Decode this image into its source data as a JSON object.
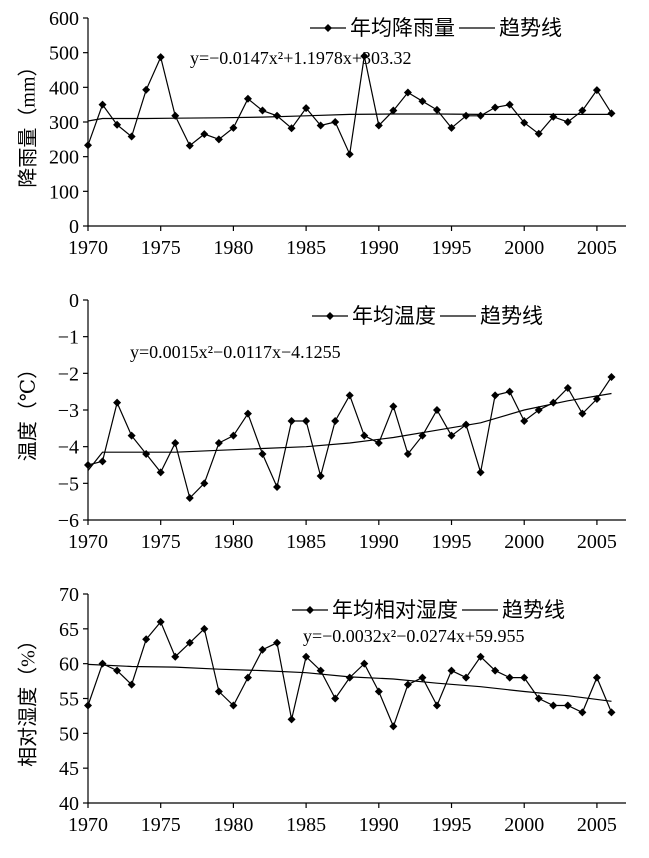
{
  "chart_data": [
    {
      "type": "line",
      "ylabel": "降雨量（mm）",
      "ylim": [
        0,
        600
      ],
      "yticks": [
        0,
        100,
        200,
        300,
        400,
        500,
        600
      ],
      "xlim": [
        1970,
        2007
      ],
      "xticks": [
        1970,
        1975,
        1980,
        1985,
        1990,
        1995,
        2000,
        2005
      ],
      "legend": {
        "series_label": "年均降雨量",
        "trend_label": "趋势线",
        "placement": "top-right"
      },
      "equation": "y=−0.0147x²+1.1978x+303.32",
      "series": [
        {
          "name": "年均降雨量",
          "x": [
            1970,
            1971,
            1972,
            1973,
            1974,
            1975,
            1976,
            1977,
            1978,
            1979,
            1980,
            1981,
            1982,
            1983,
            1984,
            1985,
            1986,
            1987,
            1988,
            1989,
            1990,
            1991,
            1992,
            1993,
            1994,
            1995,
            1996,
            1997,
            1998,
            1999,
            2000,
            2001,
            2002,
            2003,
            2004,
            2005,
            2006
          ],
          "values": [
            233,
            350,
            292,
            258,
            393,
            487,
            318,
            232,
            265,
            250,
            283,
            367,
            333,
            318,
            282,
            340,
            290,
            300,
            207,
            490,
            290,
            333,
            385,
            360,
            335,
            283,
            318,
            318,
            342,
            350,
            298,
            266,
            315,
            300,
            333,
            392,
            325
          ]
        },
        {
          "name": "趋势线",
          "x": [
            1970,
            1971,
            1972,
            1974,
            1976,
            1979,
            1982,
            1985,
            1988,
            1991,
            1994,
            1997,
            2000,
            2003,
            2006
          ],
          "values": [
            303,
            310,
            310,
            310,
            311,
            312,
            314,
            318,
            322,
            323,
            323,
            322,
            322,
            322,
            322
          ]
        }
      ]
    },
    {
      "type": "line",
      "ylabel": "温度（℃）",
      "ylim": [
        -6,
        0
      ],
      "yticks": [
        0,
        -1,
        -2,
        -3,
        -4,
        -5,
        -6
      ],
      "xlim": [
        1970,
        2007
      ],
      "xticks": [
        1970,
        1975,
        1980,
        1985,
        1990,
        1995,
        2000,
        2005
      ],
      "legend": {
        "series_label": "年均温度",
        "trend_label": "趋势线",
        "placement": "top-right"
      },
      "equation": "y=0.0015x²−0.0117x−4.1255",
      "series": [
        {
          "name": "年均温度",
          "x": [
            1970,
            1971,
            1972,
            1973,
            1974,
            1975,
            1976,
            1977,
            1978,
            1979,
            1980,
            1981,
            1982,
            1983,
            1984,
            1985,
            1986,
            1987,
            1988,
            1989,
            1990,
            1991,
            1992,
            1993,
            1994,
            1995,
            1996,
            1997,
            1998,
            1999,
            2000,
            2001,
            2002,
            2003,
            2004,
            2005,
            2006
          ],
          "values": [
            -4.5,
            -4.4,
            -2.8,
            -3.7,
            -4.2,
            -4.7,
            -3.9,
            -5.4,
            -5.0,
            -3.9,
            -3.7,
            -3.1,
            -4.2,
            -5.1,
            -3.3,
            -3.3,
            -4.8,
            -3.3,
            -2.6,
            -3.7,
            -3.9,
            -2.9,
            -4.2,
            -3.7,
            -3.0,
            -3.7,
            -3.4,
            -4.7,
            -2.6,
            -2.5,
            -3.3,
            -3.0,
            -2.8,
            -2.4,
            -3.1,
            -2.7,
            -2.1
          ]
        },
        {
          "name": "趋势线",
          "x": [
            1970,
            1971,
            1973,
            1976,
            1979,
            1982,
            1985,
            1988,
            1991,
            1994,
            1997,
            2000,
            2003,
            2006
          ],
          "values": [
            -4.65,
            -4.15,
            -4.15,
            -4.15,
            -4.1,
            -4.05,
            -4.0,
            -3.9,
            -3.75,
            -3.55,
            -3.35,
            -3.0,
            -2.75,
            -2.55
          ]
        }
      ]
    },
    {
      "type": "line",
      "ylabel": "相对湿度（%）",
      "ylim": [
        40,
        70
      ],
      "yticks": [
        40,
        45,
        50,
        55,
        60,
        65,
        70
      ],
      "xlim": [
        1970,
        2007
      ],
      "xticks": [
        1970,
        1975,
        1980,
        1985,
        1990,
        1995,
        2000,
        2005
      ],
      "legend": {
        "series_label": "年均相对湿度",
        "trend_label": "趋势线",
        "placement": "top-right"
      },
      "equation": "y=−0.0032x²−0.0274x+59.955",
      "series": [
        {
          "name": "年均相对湿度",
          "x": [
            1970,
            1971,
            1972,
            1973,
            1974,
            1975,
            1976,
            1977,
            1978,
            1979,
            1980,
            1981,
            1982,
            1983,
            1984,
            1985,
            1986,
            1987,
            1988,
            1989,
            1990,
            1991,
            1992,
            1993,
            1994,
            1995,
            1996,
            1997,
            1998,
            1999,
            2000,
            2001,
            2002,
            2003,
            2004,
            2005,
            2006
          ],
          "values": [
            54,
            60,
            59,
            57,
            63.5,
            66,
            61,
            63,
            65,
            56,
            54,
            58,
            62,
            63,
            52,
            61,
            59,
            55,
            58,
            60,
            56,
            51,
            57,
            58,
            54,
            59,
            58,
            61,
            59,
            58,
            58,
            55,
            54,
            54,
            53,
            58,
            53
          ]
        },
        {
          "name": "趋势线",
          "x": [
            1970,
            1973,
            1976,
            1979,
            1982,
            1985,
            1988,
            1991,
            1994,
            1997,
            2000,
            2003,
            2006
          ],
          "values": [
            59.9,
            59.6,
            59.5,
            59.2,
            59.0,
            58.7,
            58.1,
            57.8,
            57.2,
            56.7,
            56.0,
            55.4,
            54.6
          ]
        }
      ]
    }
  ]
}
